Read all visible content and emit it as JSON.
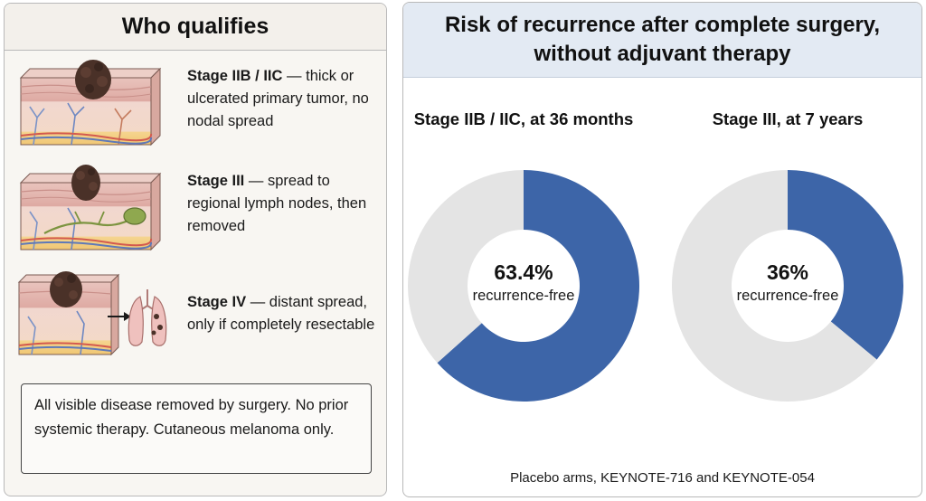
{
  "left_panel": {
    "title": "Who qualifies",
    "stages": [
      {
        "label": "Stage IIB / IIC",
        "description": " — thick or ulcerated primary tumor, no nodal spread",
        "icon": "skin-cross-section-thick-tumor"
      },
      {
        "label": "Stage III",
        "description": " — spread to regional lymph nodes, then removed",
        "icon": "skin-cross-section-lymph-node"
      },
      {
        "label": "Stage IV",
        "description": " — distant spread, only if completely resectable",
        "icon": "skin-cross-section-lung-metastasis"
      }
    ],
    "note": "All visible disease removed by surgery. No prior systemic therapy. Cutaneous melanoma only."
  },
  "right_panel": {
    "title": "Risk of recurrence after complete surgery, without adjuvant therapy",
    "footnote": "Placebo arms, KEYNOTE-716 and KEYNOTE-054"
  },
  "chart_data": [
    {
      "type": "pie",
      "title": "Stage IIB / IIC, at 36 months",
      "center_value": "63.4%",
      "center_label": "recurrence-free",
      "slices": [
        {
          "label": "recurrence-free",
          "value": 63.4,
          "color": "#3d65a8"
        },
        {
          "label": "",
          "value": 36.6,
          "color": "#e4e4e4"
        }
      ]
    },
    {
      "type": "pie",
      "title": "Stage III, at 7 years",
      "center_value": "36%",
      "center_label": "recurrence-free",
      "slices": [
        {
          "label": "recurrence-free",
          "value": 36,
          "color": "#3d65a8"
        },
        {
          "label": "",
          "value": 64,
          "color": "#e4e4e4"
        }
      ]
    }
  ],
  "colors": {
    "accent_blue": "#3d65a8",
    "remainder_grey": "#e4e4e4",
    "header_blue": "#e3eaf3",
    "tumor_brown": "#4a3128",
    "lymph_green": "#8fa84f",
    "lung_pink": "#efc1be"
  }
}
